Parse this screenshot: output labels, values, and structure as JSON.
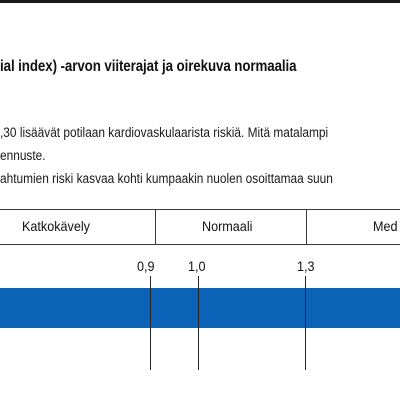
{
  "title": "ial index) -arvon viiterajat ja oirekuva normaalia",
  "notes": [
    ",30 lisäävät potilaan kardiovaskulaarista riskiä. Mitä matalampi",
    "ennuste.",
    "ahtumien riski kasvaa kohti kumpaakin nuolen osoittamaa suun"
  ],
  "zones": [
    {
      "label": "Katkokävely"
    },
    {
      "label": "Normaali"
    },
    {
      "label": "Med"
    }
  ],
  "ticks": [
    {
      "label": "0,9",
      "value": 0.9
    },
    {
      "label": "1,0",
      "value": 1.0
    },
    {
      "label": "1,3",
      "value": 1.3
    }
  ],
  "colors": {
    "band": "#0b63b8",
    "rule": "#1a1a1a"
  }
}
